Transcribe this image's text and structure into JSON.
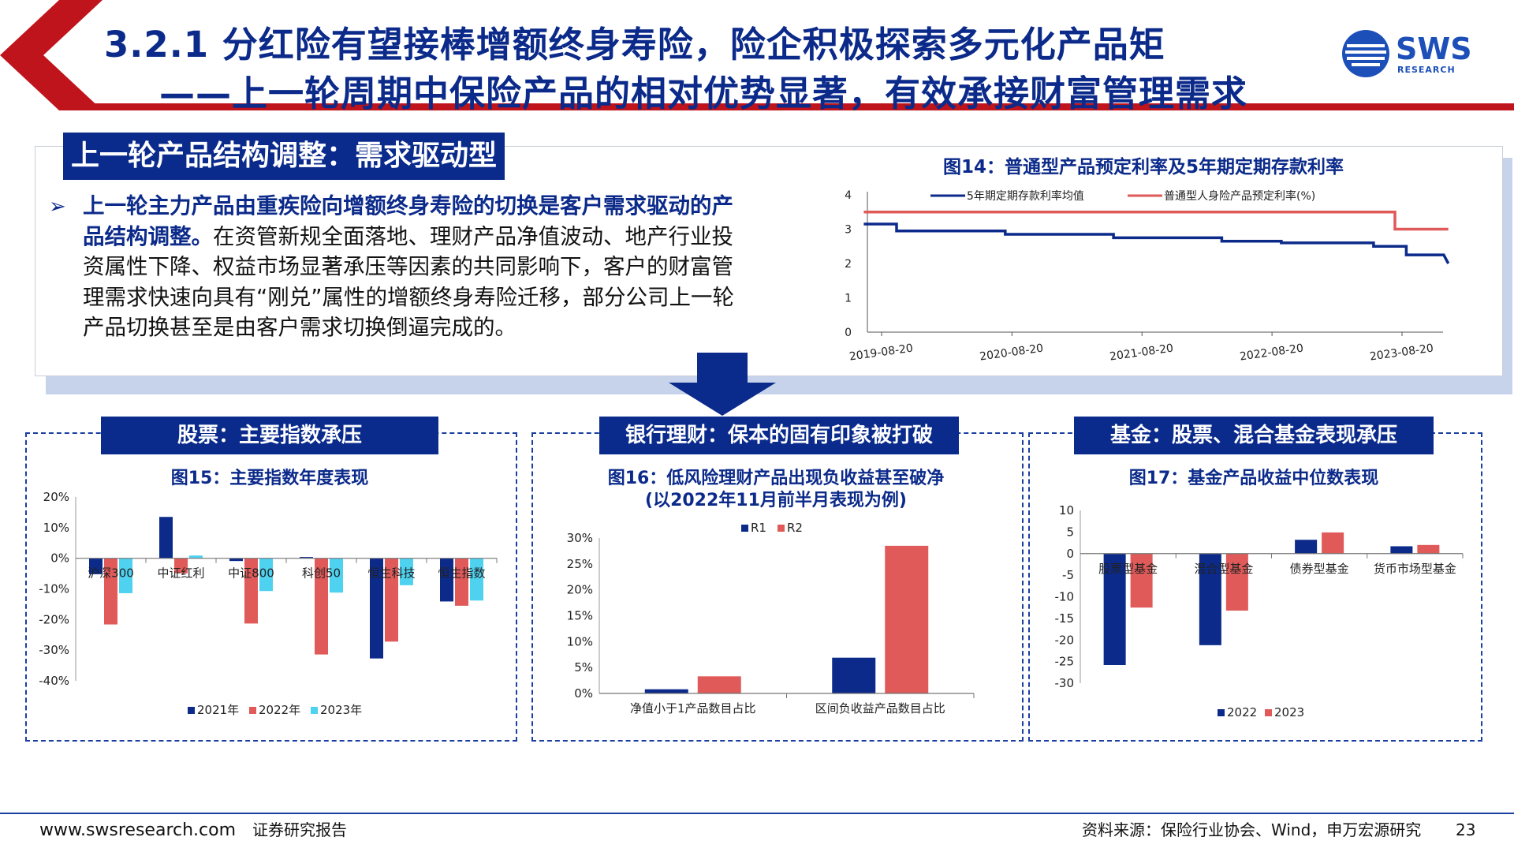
{
  "header": {
    "title_line1": "3.2.1 分红险有望接棒增额终身寿险，险企积极探索多元化产品矩",
    "title_line2": "——上一轮周期中保险产品的相对优势显著，有效承接财富管理需求",
    "logo_text": "SWS",
    "logo_sub": "RESEARCH",
    "colors": {
      "title": "#0b2a8a",
      "accent_red": "#c0141c",
      "navy": "#0a2a8c"
    }
  },
  "top_section": {
    "label": "上一轮产品结构调整：需求驱动型",
    "bullet_bold": "上一轮主力产品由重疾险向增额终身寿险的切换是客户需求驱动的产品结构调整。",
    "bullet_text": "在资管新规全面落地、理财产品净值波动、地产行业投资属性下降、权益市场显著承压等因素的共同影响下，客户的财富管理需求快速向具有“刚兑”属性的增额终身寿险迁移，部分公司上一轮产品切换甚至是由客户需求切换倒逼完成的。"
  },
  "panels": {
    "stocks_label": "股票：主要指数承压",
    "bank_label": "银行理财：保本的固有印象被打破",
    "fund_label": "基金：股票、混合基金表现承压"
  },
  "chart_data": [
    {
      "type": "line",
      "title": "图14：普通型产品预定利率及5年期定期存款利率",
      "x_ticks": [
        "2019-08-20",
        "2020-08-20",
        "2021-08-20",
        "2022-08-20",
        "2023-08-20"
      ],
      "ylim": [
        0,
        4
      ],
      "y_ticks": [
        "0",
        "1",
        "2",
        "3",
        "4"
      ],
      "legend_position": "top",
      "series": [
        {
          "name": "5年期定期存款利率均值",
          "color": "#0b2a8a",
          "points": [
            [
              "2019-07-01",
              3.15
            ],
            [
              "2019-10-01",
              3.15
            ],
            [
              "2019-10-01",
              2.95
            ],
            [
              "2020-08-01",
              2.95
            ],
            [
              "2020-08-01",
              2.85
            ],
            [
              "2021-06-01",
              2.85
            ],
            [
              "2021-06-01",
              2.75
            ],
            [
              "2022-04-01",
              2.75
            ],
            [
              "2022-04-01",
              2.65
            ],
            [
              "2022-09-15",
              2.65
            ],
            [
              "2022-09-15",
              2.6
            ],
            [
              "2023-06-01",
              2.6
            ],
            [
              "2023-06-01",
              2.5
            ],
            [
              "2023-09-01",
              2.5
            ],
            [
              "2023-09-01",
              2.25
            ],
            [
              "2023-12-15",
              2.25
            ],
            [
              "2023-12-28",
              2.0
            ]
          ]
        },
        {
          "name": "普通型人身险产品预定利率(%)",
          "color": "#e05a5a",
          "points": [
            [
              "2019-07-01",
              3.5
            ],
            [
              "2023-07-31",
              3.5
            ],
            [
              "2023-07-31",
              3.0
            ],
            [
              "2023-12-28",
              3.0
            ]
          ]
        }
      ]
    },
    {
      "type": "bar",
      "title": "图15：主要指数年度表现",
      "categories": [
        "沪深300",
        "中证红利",
        "中证800",
        "科创50",
        "恒生科技",
        "恒生指数"
      ],
      "ylim": [
        -40,
        20
      ],
      "y_ticks": [
        "20%",
        "10%",
        "0%",
        "-10%",
        "-20%",
        "-30%",
        "-40%"
      ],
      "legend_position": "bottom",
      "series": [
        {
          "name": "2021年",
          "color": "#0b2a8a",
          "values": [
            -5.2,
            13.5,
            -0.9,
            0.4,
            -32.7,
            -14.1
          ]
        },
        {
          "name": "2022年",
          "color": "#e05a5a",
          "values": [
            -21.6,
            -4.9,
            -21.3,
            -31.4,
            -27.2,
            -15.5
          ]
        },
        {
          "name": "2023年",
          "color": "#4ed2f0",
          "values": [
            -11.4,
            0.9,
            -10.7,
            -11.2,
            -8.8,
            -13.8
          ]
        }
      ]
    },
    {
      "type": "bar",
      "title": "图16：低风险理财产品出现负收益甚至破净",
      "subtitle": "(以2022年11月前半月表现为例)",
      "categories": [
        "净值小于1产品数目占比",
        "区间负收益产品数目占比"
      ],
      "ylim": [
        0,
        30
      ],
      "y_ticks": [
        "30%",
        "25%",
        "20%",
        "15%",
        "10%",
        "5%",
        "0%"
      ],
      "legend_position": "top",
      "series": [
        {
          "name": "R1",
          "color": "#0b2a8a",
          "values": [
            0.8,
            6.9
          ]
        },
        {
          "name": "R2",
          "color": "#e05a5a",
          "values": [
            3.3,
            28.5
          ]
        }
      ]
    },
    {
      "type": "bar",
      "title": "图17：基金产品收益中位数表现",
      "categories": [
        "股票型基金",
        "混合型基金",
        "债券型基金",
        "货币市场型基金"
      ],
      "ylim": [
        -30,
        10
      ],
      "y_ticks": [
        "10",
        "5",
        "0",
        "-5",
        "-10",
        "-15",
        "-20",
        "-25",
        "-30"
      ],
      "legend_position": "bottom",
      "series": [
        {
          "name": "2022",
          "color": "#0b2a8a",
          "values": [
            -25.8,
            -21.2,
            3.2,
            1.7
          ]
        },
        {
          "name": "2023",
          "color": "#e05a5a",
          "values": [
            -12.5,
            -13.2,
            4.9,
            2.0
          ]
        }
      ]
    }
  ],
  "footer": {
    "website": "www.swsresearch.com",
    "report_type": "证券研究报告",
    "source": "资料来源：保险行业协会、Wind，申万宏源研究",
    "page_number": "23"
  }
}
